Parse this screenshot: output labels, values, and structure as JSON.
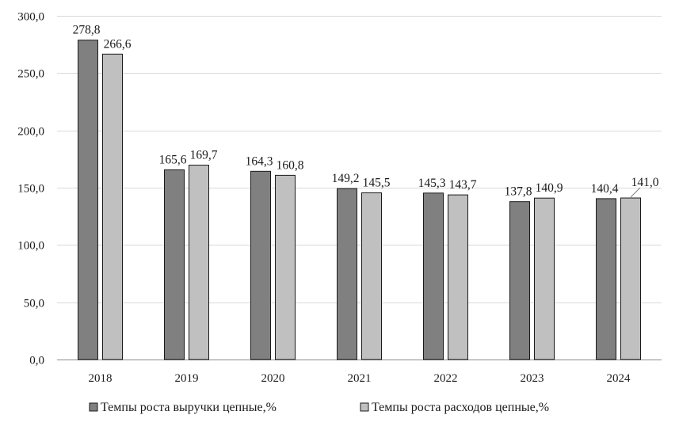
{
  "chart_data": {
    "type": "bar",
    "categories": [
      "2018",
      "2019",
      "2020",
      "2021",
      "2022",
      "2023",
      "2024"
    ],
    "series": [
      {
        "name": "Темпы роста выручки цепные,%",
        "values": [
          278.8,
          165.6,
          164.3,
          149.2,
          145.3,
          137.8,
          140.4
        ],
        "labels": [
          "278,8",
          "165,6",
          "164,3",
          "149,2",
          "145,3",
          "137,8",
          "140,4"
        ],
        "color": "#808080"
      },
      {
        "name": "Темпы роста расходов цепные,%",
        "values": [
          266.6,
          169.7,
          160.8,
          145.5,
          143.7,
          140.9,
          141.0
        ],
        "labels": [
          "266,6",
          "169,7",
          "160,8",
          "145,5",
          "143,7",
          "140,9",
          "141,0"
        ],
        "color": "#c0c0c0"
      }
    ],
    "ylim": [
      0,
      300
    ],
    "y_ticks": [
      0,
      50,
      100,
      150,
      200,
      250,
      300
    ],
    "y_tick_labels": [
      "0,0",
      "50,0",
      "100,0",
      "150,0",
      "200,0",
      "250,0",
      "300,0"
    ],
    "grid": true,
    "legend_position": "bottom",
    "title": "",
    "xlabel": "",
    "ylabel": ""
  }
}
